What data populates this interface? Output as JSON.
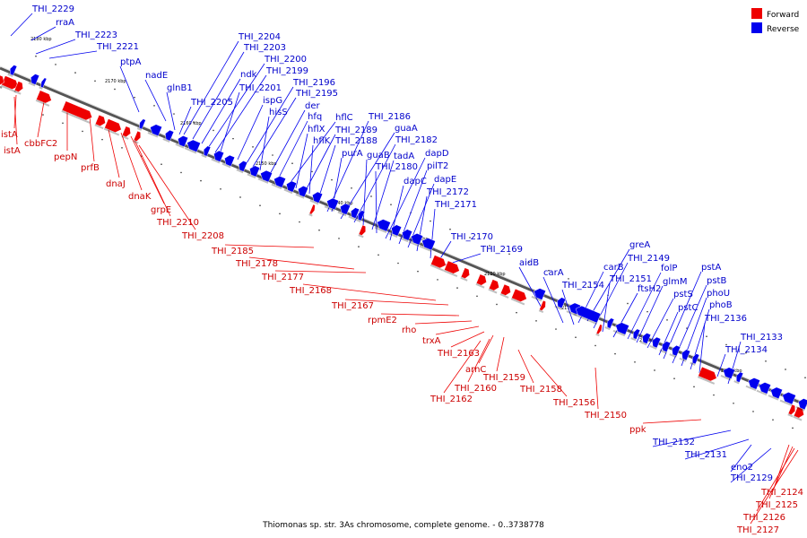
{
  "caption": "Thiomonas sp. str. 3As chromosome, complete genome. - 0..3738778",
  "colors": {
    "forward": "#ee0000",
    "reverse": "#0000ee",
    "forward_label": "#cc0000",
    "reverse_label": "#0000cc",
    "axis": "#555555"
  },
  "legend": [
    {
      "label": "Forward",
      "color": "#ee0000"
    },
    {
      "label": "Reverse",
      "color": "#0000ee"
    }
  ],
  "ticks": [
    "2180 kbp",
    "2170 kbp",
    "2160 kbp",
    "2150 kbp",
    "2140 kbp",
    "2130 kbp",
    "2120 kbp",
    "2110 kbp",
    "2100 kbp",
    "2090 kbp"
  ],
  "reverse_labels": [
    "THI_2229",
    "rraA",
    "THI_2223",
    "THI_2221",
    "ptpA",
    "nadE",
    "glnB1",
    "THI_2204",
    "THI_2203",
    "ndk",
    "THI_2200",
    "THI_2199",
    "THI_2201",
    "THI_2205",
    "ispG",
    "THI_2196",
    "THI_2195",
    "hisS",
    "der",
    "hfq",
    "hflC",
    "THI_2186",
    "hflX",
    "THI_2189",
    "guaA",
    "hflK",
    "THI_2188",
    "THI_2182",
    "purA",
    "guaB",
    "tadA",
    "dapD",
    "THI_2180",
    "pilT2",
    "dapC",
    "dapE",
    "THI_2172",
    "THI_2171",
    "THI_2170",
    "THI_2169",
    "greA",
    "aidB",
    "carB",
    "THI_2149",
    "carA",
    "THI_2151",
    "folP",
    "pstA",
    "THI_2154",
    "ftsH2",
    "glmM",
    "pstB",
    "pstS",
    "phoU",
    "pstC",
    "phoB",
    "THI_2136",
    "THI_2133",
    "THI_2134",
    "THI_2132",
    "THI_2131",
    "eno2",
    "THI_2129"
  ],
  "forward_labels": [
    "istA",
    "cbbFC2",
    "istA",
    "pepN",
    "prfB",
    "dnaJ",
    "dnaK",
    "grpE",
    "THI_2210",
    "THI_2208",
    "THI_2185",
    "THI_2178",
    "THI_2177",
    "THI_2168",
    "THI_2167",
    "rpmE2",
    "rho",
    "trxA",
    "THI_2163",
    "arnC",
    "THI_2159",
    "THI_2160",
    "THI_2158",
    "THI_2162",
    "THI_2156",
    "THI_2150",
    "ppk",
    "THI_2124",
    "THI_2125",
    "THI_2126",
    "THI_2127"
  ]
}
